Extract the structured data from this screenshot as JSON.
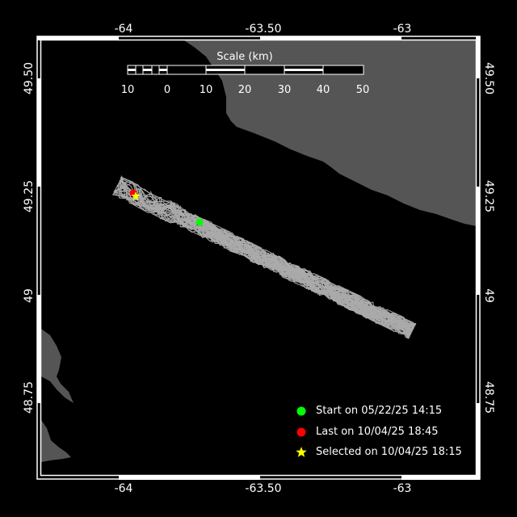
{
  "map": {
    "colors": {
      "background": "#000000",
      "land": "#555555",
      "track": "#aaaaaa",
      "frame": "#ffffff"
    },
    "lon_ticks": [
      "-64",
      "-63.50",
      "-63"
    ],
    "lat_ticks": [
      "49.50",
      "49.25",
      "49",
      "48.75"
    ],
    "scale_bar": {
      "title": "Scale (km)",
      "labels": [
        "10",
        "0",
        "10",
        "20",
        "30",
        "40",
        "50"
      ]
    },
    "legend": [
      {
        "label": "Start on 05/22/25 14:15",
        "marker": "circle",
        "color": "#00ff00"
      },
      {
        "label": "Last on 10/04/25 18:45",
        "marker": "circle",
        "color": "#ff0000"
      },
      {
        "label": "Selected on 10/04/25 18:15",
        "marker": "star",
        "color": "#ffff00"
      }
    ]
  }
}
